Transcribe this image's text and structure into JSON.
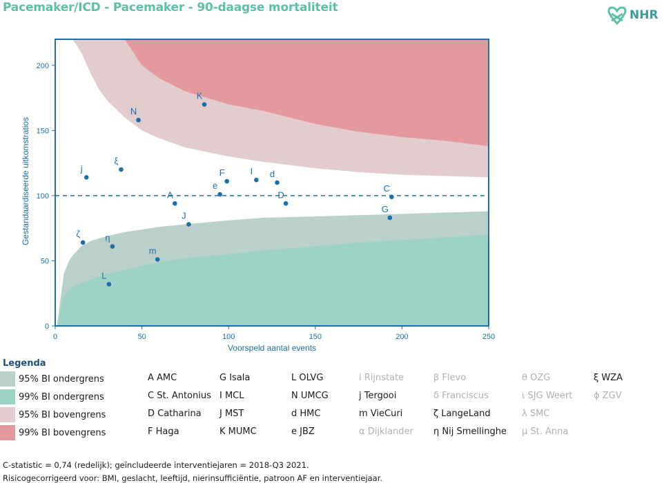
{
  "header": {
    "title": "Pacemaker/ICD - Pacemaker - 90-daagse mortaliteit",
    "logo_text": "NHR"
  },
  "colors": {
    "accent": "#5cbfa8",
    "axis": "#1a6fa8",
    "point": "#1a6fa8",
    "lower95": "#b9d0cb",
    "lower99": "#9ed2c6",
    "upper95": "#e3ccce",
    "upper99": "#e49a9d"
  },
  "chart_data": {
    "type": "scatter",
    "xlabel": "Voorspeld aantal events",
    "ylabel": "Gestandaardiseerde uitkomstratios",
    "xlim": [
      0,
      250
    ],
    "ylim": [
      0,
      220
    ],
    "x_ticks": [
      0,
      50,
      100,
      150,
      200,
      250
    ],
    "y_ticks": [
      0,
      50,
      100,
      150,
      200
    ],
    "reference_line": 100,
    "points": [
      {
        "label": "K",
        "x": 86,
        "y": 170
      },
      {
        "label": "N",
        "x": 48,
        "y": 158
      },
      {
        "label": "ξ",
        "x": 38,
        "y": 120
      },
      {
        "label": "j",
        "x": 18,
        "y": 114
      },
      {
        "label": "F",
        "x": 99,
        "y": 111
      },
      {
        "label": "I",
        "x": 116,
        "y": 112
      },
      {
        "label": "d",
        "x": 128,
        "y": 110
      },
      {
        "label": "e",
        "x": 95,
        "y": 101
      },
      {
        "label": "C",
        "x": 194,
        "y": 99
      },
      {
        "label": "A",
        "x": 69,
        "y": 94
      },
      {
        "label": "D",
        "x": 133,
        "y": 94
      },
      {
        "label": "G",
        "x": 193,
        "y": 83
      },
      {
        "label": "J",
        "x": 77,
        "y": 78
      },
      {
        "label": "ζ",
        "x": 16,
        "y": 64
      },
      {
        "label": "η",
        "x": 33,
        "y": 61
      },
      {
        "label": "m",
        "x": 59,
        "y": 51
      },
      {
        "label": "L",
        "x": 31,
        "y": 32
      }
    ],
    "bands": {
      "x": [
        1,
        3,
        5,
        8,
        10,
        15,
        20,
        25,
        30,
        40,
        50,
        60,
        75,
        100,
        120,
        150,
        175,
        200,
        225,
        250
      ],
      "lower99": [
        0,
        12,
        22,
        28,
        30,
        33,
        35,
        38,
        40,
        43,
        46,
        49,
        52,
        55,
        58,
        61,
        64,
        66,
        68,
        70
      ],
      "lower95": [
        0,
        20,
        40,
        50,
        54,
        61,
        65,
        67,
        69,
        72,
        74,
        76,
        78,
        81,
        83,
        84,
        85,
        86,
        87,
        88
      ],
      "upper95": [
        220,
        220,
        220,
        220,
        220,
        210,
        195,
        182,
        173,
        160,
        150,
        144,
        137,
        130,
        126,
        121,
        118,
        116,
        115,
        114
      ],
      "upper99": [
        220,
        220,
        220,
        220,
        220,
        220,
        220,
        220,
        220,
        220,
        200,
        190,
        180,
        170,
        165,
        155,
        149,
        145,
        142,
        138
      ]
    }
  },
  "legend": {
    "title": "Legenda",
    "bands": [
      {
        "label": "95% BI ondergrens",
        "color": "#b9d0cb"
      },
      {
        "label": "99% BI ondergrens",
        "color": "#9ed2c6"
      },
      {
        "label": "95% BI bovengrens",
        "color": "#e3ccce"
      },
      {
        "label": "99% BI bovengrens",
        "color": "#e49a9d"
      }
    ],
    "hospitals": [
      [
        {
          "text": "A AMC",
          "active": true
        },
        {
          "text": "C St. Antonius",
          "active": true
        },
        {
          "text": "D Catharina",
          "active": true
        },
        {
          "text": "F Haga",
          "active": true
        }
      ],
      [
        {
          "text": "G Isala",
          "active": true
        },
        {
          "text": "I MCL",
          "active": true
        },
        {
          "text": "J MST",
          "active": true
        },
        {
          "text": "K MUMC",
          "active": true
        }
      ],
      [
        {
          "text": "L OLVG",
          "active": true
        },
        {
          "text": "N UMCG",
          "active": true
        },
        {
          "text": "d HMC",
          "active": true
        },
        {
          "text": "e JBZ",
          "active": true
        }
      ],
      [
        {
          "text": "i Rijnstate",
          "active": false
        },
        {
          "text": "j Tergooi",
          "active": true
        },
        {
          "text": "m VieCuri",
          "active": true
        },
        {
          "text": "α Dijklander",
          "active": false
        }
      ],
      [
        {
          "text": "β Flevo",
          "active": false
        },
        {
          "text": "δ Franciscus",
          "active": false
        },
        {
          "text": "ζ LangeLand",
          "active": true
        },
        {
          "text": "η Nij Smellinghe",
          "active": true
        }
      ],
      [
        {
          "text": "θ OZG",
          "active": false
        },
        {
          "text": "ι SJG Weert",
          "active": false
        },
        {
          "text": "λ SMC",
          "active": false
        },
        {
          "text": "μ St. Anna",
          "active": false
        }
      ],
      [
        {
          "text": "ξ WZA",
          "active": true
        },
        {
          "text": "ϕ ZGV",
          "active": false
        }
      ]
    ]
  },
  "footer": {
    "line1": "C-statistic = 0,74 (redelijk); geïncludeerde interventiejaren = 2018-Q3 2021.",
    "line2": "Risicogecorrigeerd voor: BMI, geslacht, leeftijd, nierinsufficiëntie, patroon AF en interventiejaar."
  }
}
